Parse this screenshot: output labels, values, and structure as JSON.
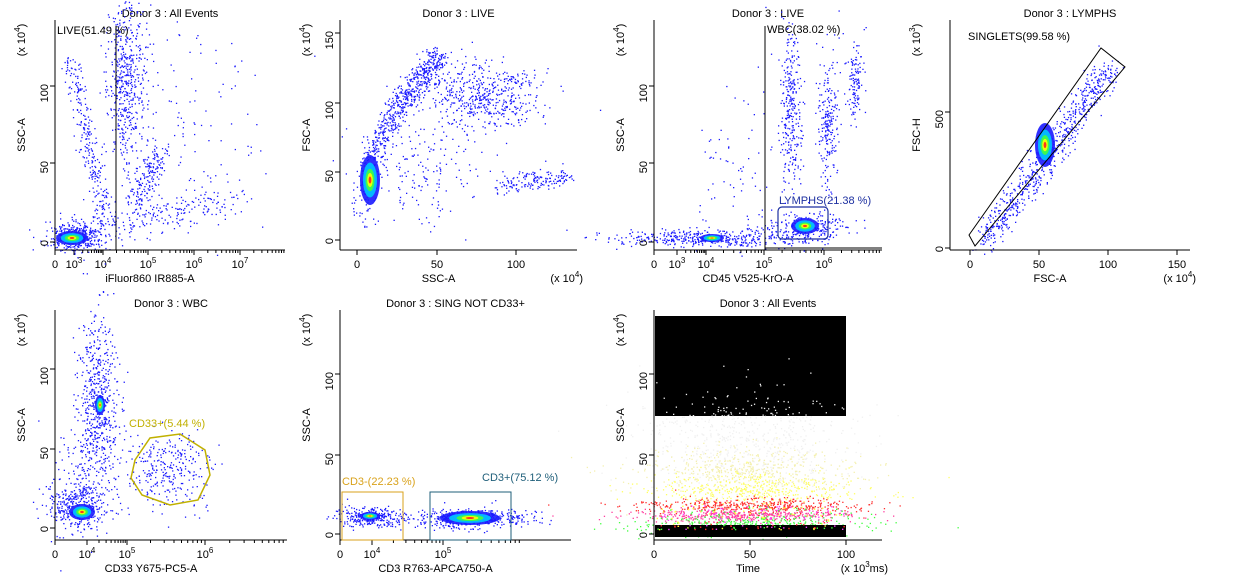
{
  "chart_data": [
    {
      "type": "scatter",
      "title": "Donor 3 : All Events",
      "xlabel": "iFluor860 IR885-A",
      "ylabel": "SSC-A",
      "y_multiplier": [
        "(x 10",
        "4",
        ")"
      ],
      "x_scale": "log",
      "x_ticks": [
        [
          "0",
          ""
        ],
        [
          "10",
          "3"
        ],
        [
          "10",
          "4"
        ],
        [
          "10",
          "5"
        ],
        [
          "10",
          "6"
        ],
        [
          "10",
          "7"
        ]
      ],
      "y_ticks": [
        "0",
        "50",
        "100"
      ],
      "gates": [
        {
          "label": "LIVE(51.49 %)",
          "color": "#000000"
        }
      ],
      "populations": [
        "near-origin cluster",
        "vertical high-SSC column",
        "diagonal arm"
      ]
    },
    {
      "type": "scatter",
      "title": "Donor 3 : LIVE",
      "xlabel": "SSC-A",
      "ylabel": "FSC-A",
      "x_multiplier": [
        "(x 10",
        "4",
        ")"
      ],
      "y_multiplier": [
        "(x 10",
        "4",
        ")"
      ],
      "x_ticks": [
        "0",
        "50",
        "100"
      ],
      "y_ticks": [
        "0",
        "50",
        "100",
        "150"
      ],
      "populations": [
        "curved main population",
        "plateau cluster",
        "secondary tail"
      ]
    },
    {
      "type": "scatter",
      "title": "Donor 3 : LIVE",
      "xlabel": "CD45 V525-KrO-A",
      "ylabel": "SSC-A",
      "y_multiplier": [
        "(x 10",
        "4",
        ")"
      ],
      "x_scale": "log",
      "x_ticks": [
        [
          "0",
          ""
        ],
        [
          "10",
          "3"
        ],
        [
          "10",
          "4"
        ],
        [
          "10",
          "5"
        ],
        [
          "10",
          "6"
        ]
      ],
      "y_ticks": [
        "0",
        "50",
        "100"
      ],
      "gates": [
        {
          "label": "WBC(38.02 %)",
          "color": "#000000"
        },
        {
          "label": "LYMPHS(21.38 %)",
          "color": "#1c2fa0"
        }
      ]
    },
    {
      "type": "scatter",
      "title": "Donor 3 : LYMPHS",
      "xlabel": "FSC-A",
      "ylabel": "FSC-H",
      "x_multiplier": [
        "(x 10",
        "4",
        ")"
      ],
      "y_multiplier": [
        "(x 10",
        "3",
        ")"
      ],
      "x_ticks": [
        "0",
        "50",
        "100",
        "150"
      ],
      "y_ticks": [
        "0",
        "500"
      ],
      "gates": [
        {
          "label": "SINGLETS(99.58 %)",
          "color": "#000000"
        }
      ]
    },
    {
      "type": "scatter",
      "title": "Donor 3 : WBC",
      "xlabel": "CD33 Y675-PC5-A",
      "ylabel": "SSC-A",
      "y_multiplier": [
        "(x 10",
        "4",
        ")"
      ],
      "x_scale": "log",
      "x_ticks": [
        [
          "0",
          ""
        ],
        [
          "10",
          "4"
        ],
        [
          "10",
          "5"
        ],
        [
          "10",
          "6"
        ]
      ],
      "y_ticks": [
        "0",
        "50",
        "100"
      ],
      "gates": [
        {
          "label": "CD33+(5.44 %)",
          "color": "#c0b000"
        }
      ]
    },
    {
      "type": "scatter",
      "title": "Donor 3 : SING NOT CD33+",
      "xlabel": "CD3 R763-APCA750-A",
      "ylabel": "SSC-A",
      "y_multiplier": [
        "(x 10",
        "4",
        ")"
      ],
      "x_scale": "log",
      "x_ticks": [
        [
          "0",
          ""
        ],
        [
          "10",
          "4"
        ],
        [
          "10",
          "5"
        ]
      ],
      "y_ticks": [
        "0",
        "50",
        "100"
      ],
      "gates": [
        {
          "label": "CD3-(22.23 %)",
          "color": "#d9a21b"
        },
        {
          "label": "CD3+(75.12 %)",
          "color": "#1f5f7a"
        }
      ]
    },
    {
      "type": "scatter",
      "title": "Donor 3 : All Events",
      "xlabel": "Time",
      "ylabel": "SSC-A",
      "x_multiplier": [
        "(x 10",
        "3",
        "ms)"
      ],
      "y_multiplier": [
        "(x 10",
        "4",
        ")"
      ],
      "x_ticks": [
        "0",
        "50",
        "100"
      ],
      "y_ticks": [
        "0",
        "50",
        "100"
      ]
    }
  ]
}
